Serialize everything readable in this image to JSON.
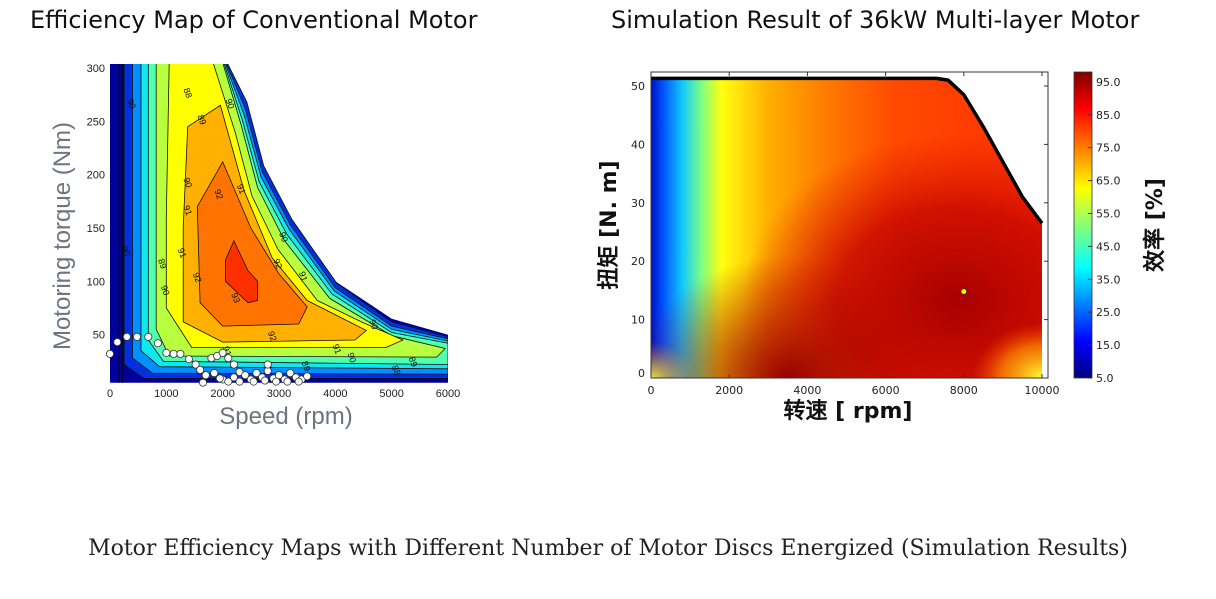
{
  "caption": "Motor Efficiency Maps with Different Number of Motor Discs Energized (Simulation Results)",
  "chart_data": [
    {
      "type": "heatmap",
      "subtype": "contour",
      "title": "Efficiency Map of Conventional Motor",
      "xlabel": "Speed (rpm)",
      "ylabel": "Motoring torque (Nm)",
      "xlim": [
        0,
        6000
      ],
      "ylim": [
        5,
        305
      ],
      "xticks": [
        "0",
        "1000",
        "2000",
        "3000",
        "4000",
        "5000",
        "6000"
      ],
      "yticks": [
        "50",
        "100",
        "150",
        "200",
        "250",
        "300"
      ],
      "envelope": [
        [
          0,
          305
        ],
        [
          2000,
          305
        ],
        [
          2400,
          270
        ],
        [
          2700,
          210
        ],
        [
          3200,
          160
        ],
        [
          4000,
          100
        ],
        [
          5000,
          65
        ],
        [
          6000,
          50
        ],
        [
          6000,
          5
        ],
        [
          0,
          5
        ]
      ],
      "contours": [
        {
          "color": "#00009a",
          "points": [
            [
              0,
              305
            ],
            [
              2000,
              305
            ],
            [
              2400,
              270
            ],
            [
              2700,
              210
            ],
            [
              3200,
              160
            ],
            [
              4000,
              100
            ],
            [
              5000,
              65
            ],
            [
              6000,
              50
            ],
            [
              6000,
              5
            ],
            [
              0,
              5
            ]
          ]
        },
        {
          "color": "#0030e0",
          "points": [
            [
              250,
              305
            ],
            [
              2080,
              305
            ],
            [
              2430,
              268
            ],
            [
              2730,
              208
            ],
            [
              3230,
              158
            ],
            [
              4030,
              98
            ],
            [
              5000,
              62
            ],
            [
              6000,
              48
            ],
            [
              6000,
              9
            ],
            [
              600,
              9
            ],
            [
              250,
              22
            ]
          ]
        },
        {
          "color": "#0090ff",
          "points": [
            [
              400,
              305
            ],
            [
              2060,
              305
            ],
            [
              2400,
              262
            ],
            [
              2700,
              203
            ],
            [
              3200,
              153
            ],
            [
              4000,
              94
            ],
            [
              5000,
              58
            ],
            [
              6000,
              46
            ],
            [
              6000,
              13
            ],
            [
              750,
              14
            ],
            [
              400,
              28
            ]
          ]
        },
        {
          "color": "#10e8f0",
          "points": [
            [
              550,
              305
            ],
            [
              2040,
              305
            ],
            [
              2380,
              256
            ],
            [
              2680,
              198
            ],
            [
              3180,
              149
            ],
            [
              3980,
              91
            ],
            [
              5000,
              55
            ],
            [
              6000,
              44
            ],
            [
              6000,
              18
            ],
            [
              880,
              20
            ],
            [
              550,
              35
            ]
          ]
        },
        {
          "color": "#50ffb0",
          "points": [
            [
              680,
              305
            ],
            [
              2020,
              305
            ],
            [
              2350,
              251
            ],
            [
              2650,
              193
            ],
            [
              3140,
              144
            ],
            [
              3940,
              88
            ],
            [
              5000,
              52
            ],
            [
              6000,
              42
            ],
            [
              6000,
              22
            ],
            [
              950,
              25
            ],
            [
              680,
              45
            ]
          ]
        },
        {
          "color": "#b8ff40",
          "points": [
            [
              820,
              305
            ],
            [
              2000,
              305
            ],
            [
              2330,
              246
            ],
            [
              2620,
              188
            ],
            [
              3100,
              138
            ],
            [
              3900,
              84
            ],
            [
              5000,
              49
            ],
            [
              5950,
              37
            ],
            [
              5800,
              29
            ],
            [
              1050,
              30
            ],
            [
              820,
              55
            ]
          ]
        },
        {
          "color": "#ffff00",
          "points": [
            [
              1050,
              305
            ],
            [
              1830,
              305
            ],
            [
              2220,
              240
            ],
            [
              2520,
              180
            ],
            [
              2980,
              130
            ],
            [
              3680,
              82
            ],
            [
              4500,
              61
            ],
            [
              5200,
              45
            ],
            [
              4900,
              38
            ],
            [
              1450,
              38
            ],
            [
              1000,
              75
            ],
            [
              1000,
              160
            ]
          ]
        },
        {
          "color": "#ffb000",
          "points": [
            [
              1380,
              245
            ],
            [
              1960,
              265
            ],
            [
              2380,
              185
            ],
            [
              2880,
              122
            ],
            [
              3500,
              82
            ],
            [
              4250,
              62
            ],
            [
              4550,
              54
            ],
            [
              4350,
              45
            ],
            [
              2000,
              43
            ],
            [
              1300,
              62
            ],
            [
              1300,
              150
            ]
          ]
        },
        {
          "color": "#ff7400",
          "points": [
            [
              1550,
              170
            ],
            [
              2000,
              212
            ],
            [
              2500,
              150
            ],
            [
              3000,
              107
            ],
            [
              3500,
              76
            ],
            [
              3350,
              60
            ],
            [
              2000,
              58
            ],
            [
              1600,
              80
            ]
          ]
        },
        {
          "color": "#ff3000",
          "points": [
            [
              2050,
              120
            ],
            [
              2200,
              138
            ],
            [
              2450,
              110
            ],
            [
              2620,
              100
            ],
            [
              2620,
              82
            ],
            [
              2450,
              80
            ],
            [
              2050,
              100
            ]
          ]
        }
      ],
      "contour_labels": [
        {
          "text": "90",
          "x": 300,
          "y": 270
        },
        {
          "text": "88",
          "x": 1300,
          "y": 280
        },
        {
          "text": "89",
          "x": 1550,
          "y": 255
        },
        {
          "text": "90",
          "x": 2050,
          "y": 270
        },
        {
          "text": "91",
          "x": 2250,
          "y": 190
        },
        {
          "text": "90",
          "x": 1300,
          "y": 196
        },
        {
          "text": "92",
          "x": 1850,
          "y": 185
        },
        {
          "text": "91",
          "x": 1300,
          "y": 170
        },
        {
          "text": "90",
          "x": 200,
          "y": 132
        },
        {
          "text": "91",
          "x": 1200,
          "y": 130
        },
        {
          "text": "89",
          "x": 850,
          "y": 120
        },
        {
          "text": "90",
          "x": 900,
          "y": 95
        },
        {
          "text": "92",
          "x": 1470,
          "y": 107
        },
        {
          "text": "93",
          "x": 2150,
          "y": 88
        },
        {
          "text": "92",
          "x": 2900,
          "y": 120
        },
        {
          "text": "91",
          "x": 3350,
          "y": 108
        },
        {
          "text": "90",
          "x": 3000,
          "y": 145
        },
        {
          "text": "92",
          "x": 2800,
          "y": 52
        },
        {
          "text": "90",
          "x": 4600,
          "y": 63
        },
        {
          "text": "91",
          "x": 3950,
          "y": 40
        },
        {
          "text": "90",
          "x": 4000,
          "y": 32
        },
        {
          "text": "89",
          "x": 5300,
          "y": 28
        },
        {
          "text": "89",
          "x": 3400,
          "y": 24
        },
        {
          "text": "88",
          "x": 5000,
          "y": 20
        },
        {
          "text": "91",
          "x": 2000,
          "y": 38
        }
      ],
      "scatter_points": [
        [
          0,
          32
        ],
        [
          130,
          43
        ],
        [
          300,
          48
        ],
        [
          480,
          48
        ],
        [
          680,
          48
        ],
        [
          850,
          42
        ],
        [
          1000,
          33
        ],
        [
          1130,
          32
        ],
        [
          1250,
          32
        ],
        [
          1400,
          27
        ],
        [
          1520,
          22
        ],
        [
          1600,
          17
        ],
        [
          1700,
          12
        ],
        [
          1800,
          28
        ],
        [
          1900,
          30
        ],
        [
          2000,
          33
        ],
        [
          2100,
          28
        ],
        [
          2200,
          22
        ],
        [
          2300,
          15
        ],
        [
          1650,
          5
        ],
        [
          2000,
          8
        ],
        [
          2200,
          10
        ],
        [
          2400,
          12
        ],
        [
          2500,
          8
        ],
        [
          2600,
          14
        ],
        [
          2700,
          10
        ],
        [
          2800,
          16
        ],
        [
          2900,
          9
        ],
        [
          3000,
          12
        ],
        [
          3100,
          8
        ],
        [
          3200,
          14
        ],
        [
          3300,
          10
        ],
        [
          3400,
          8
        ],
        [
          3500,
          11
        ],
        [
          2300,
          6
        ],
        [
          2550,
          6
        ],
        [
          2750,
          7
        ],
        [
          2950,
          6
        ],
        [
          3150,
          6
        ],
        [
          3350,
          6
        ],
        [
          2800,
          22
        ],
        [
          1850,
          14
        ],
        [
          1950,
          9
        ],
        [
          2100,
          6
        ]
      ]
    },
    {
      "type": "heatmap",
      "title": "Simulation Result of 36kW Multi-layer Motor",
      "xlabel": "转速 [ rpm]",
      "ylabel": "扭矩 [N. m]",
      "colorbar_label": "效率 [%]",
      "xlim": [
        0,
        10000
      ],
      "ylim": [
        0,
        52
      ],
      "xticks": [
        "0",
        "2000",
        "4000",
        "6000",
        "8000",
        "10000"
      ],
      "yticks": [
        "0",
        "10",
        "20",
        "30",
        "40",
        "50"
      ],
      "colorbar_ticks": [
        "5.0",
        "15.0",
        "25.0",
        "35.0",
        "45.0",
        "55.0",
        "65.0",
        "75.0",
        "85.0",
        "95.0"
      ],
      "colorbar_range": [
        5,
        98
      ],
      "colormap": "jet",
      "max_torque_curve": [
        [
          0,
          51.3
        ],
        [
          7300,
          51.3
        ],
        [
          7600,
          51
        ],
        [
          8000,
          48.5
        ],
        [
          8500,
          43
        ],
        [
          9000,
          37
        ],
        [
          9500,
          31
        ],
        [
          10000,
          26.5
        ]
      ],
      "operating_point": {
        "speed": 8000,
        "torque": 14.8,
        "color": "#ffff00"
      }
    }
  ]
}
